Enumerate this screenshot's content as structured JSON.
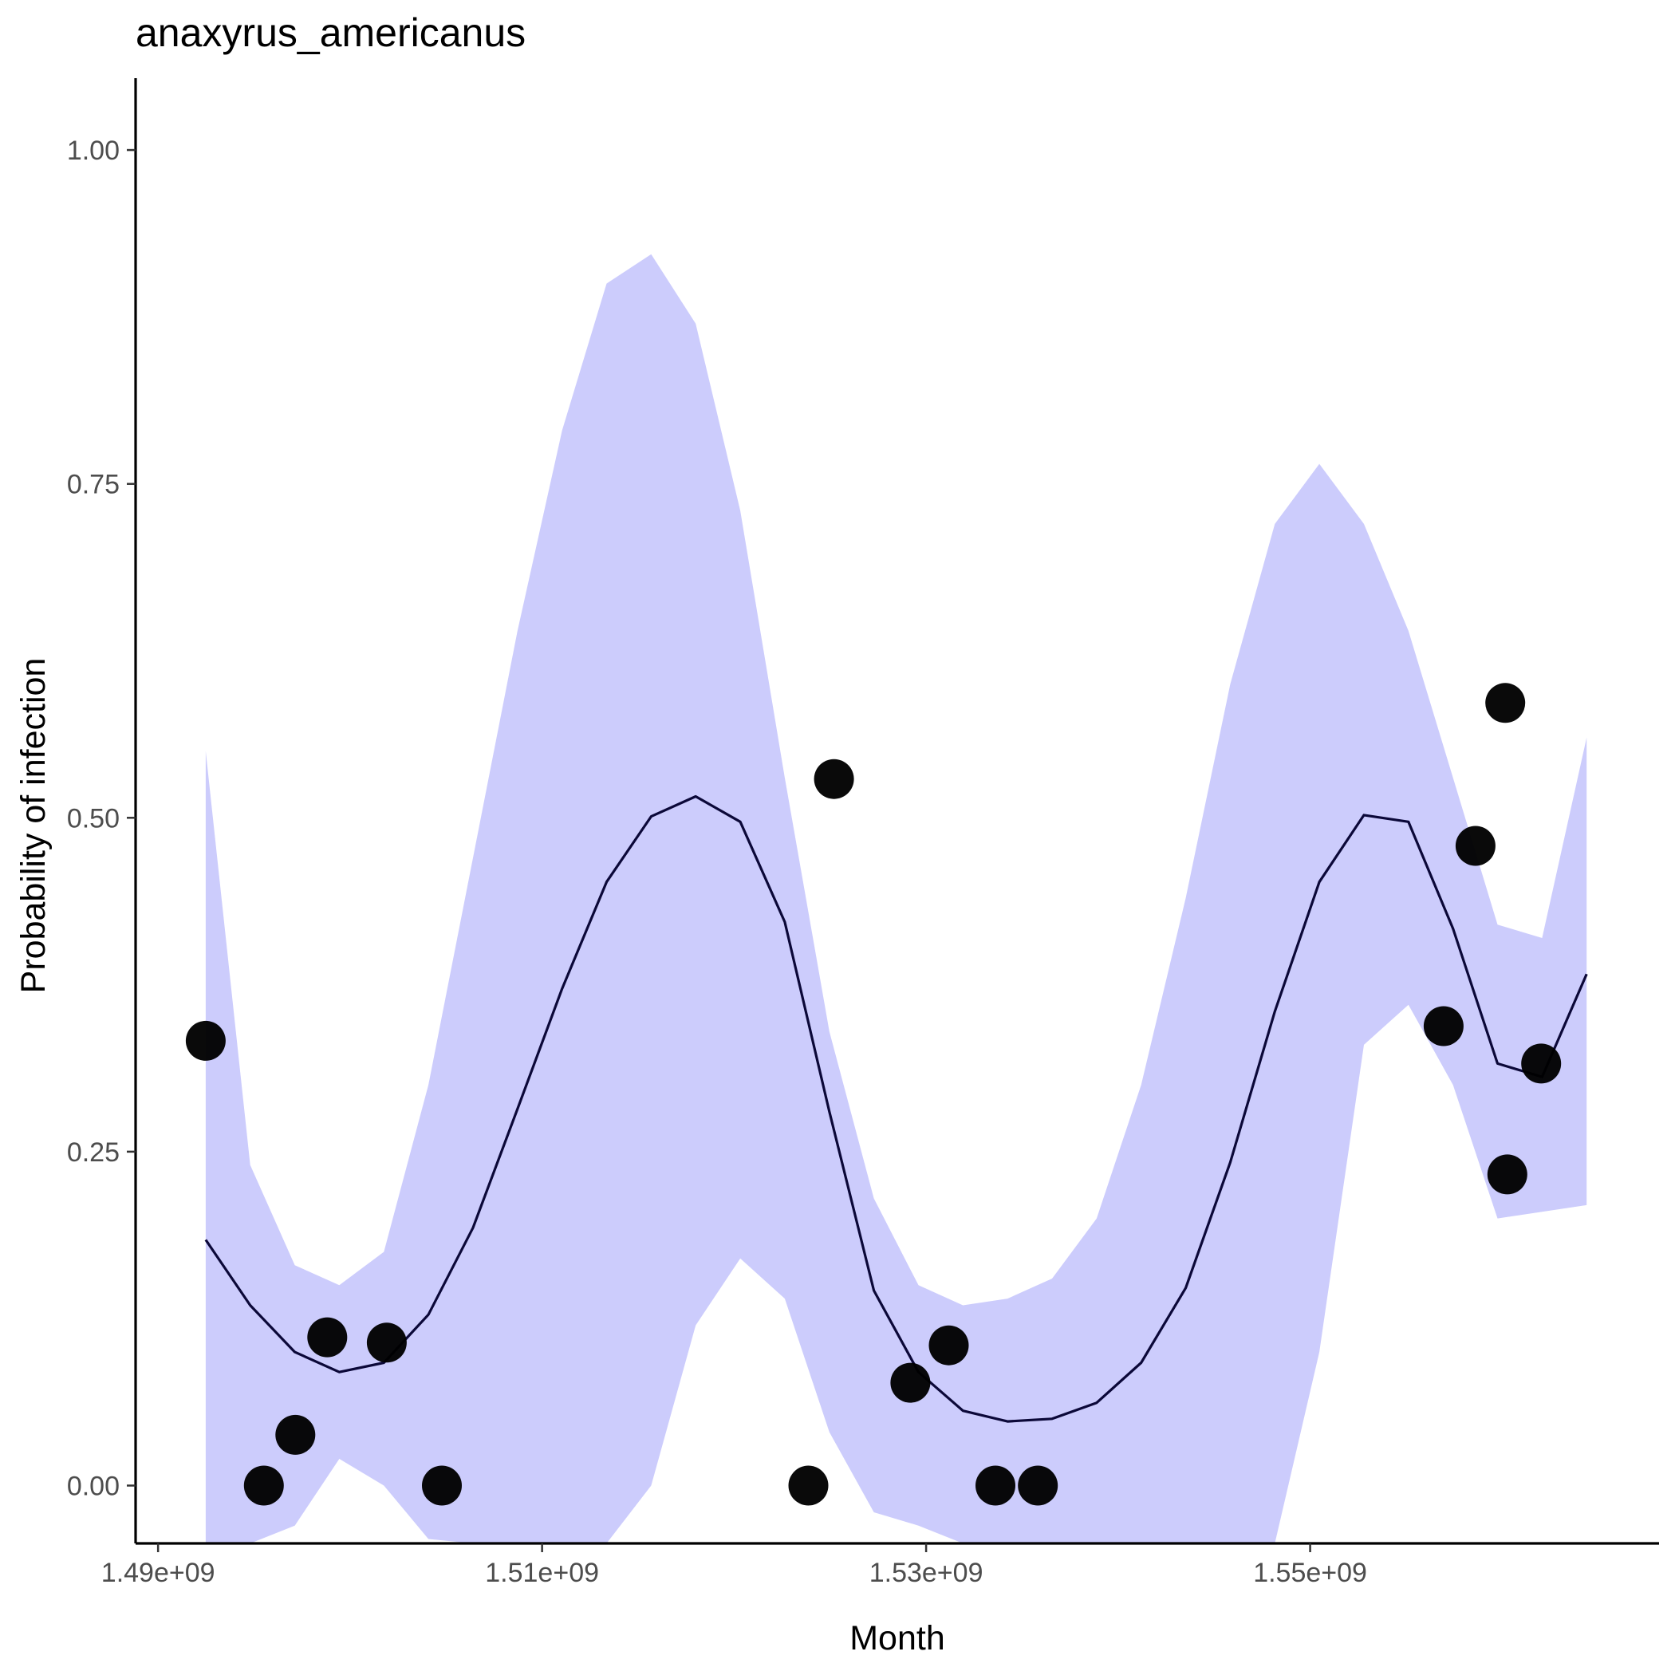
{
  "chart_data": {
    "type": "scatter",
    "title": "anaxyrus_americanus",
    "xlabel": "Month",
    "ylabel": "Probability of infection",
    "xlim": [
      1488830000,
      1568170000
    ],
    "ylim": [
      -0.0433,
      1.0538
    ],
    "x_ticks": [
      1490000000,
      1510000000,
      1530000000,
      1550000000
    ],
    "x_tick_labels": [
      "1.49e+09",
      "1.51e+09",
      "1.53e+09",
      "1.55e+09"
    ],
    "y_ticks": [
      0,
      0.25,
      0.5,
      0.75,
      1.0
    ],
    "y_tick_labels": [
      "0.00",
      "0.25",
      "0.50",
      "0.75",
      "1.00"
    ],
    "grid": false,
    "legend": "none",
    "points": {
      "color": "#000000",
      "x": [
        1492480000,
        1495510000,
        1497150000,
        1498810000,
        1501910000,
        1504780000,
        1523870000,
        1525200000,
        1529180000,
        1531180000,
        1533610000,
        1535820000,
        1556950000,
        1558610000,
        1560160000,
        1560270000,
        1562030000
      ],
      "y": [
        0.333,
        0.0,
        0.038,
        0.111,
        0.107,
        0.0,
        0.0,
        0.529,
        0.077,
        0.105,
        0.0,
        0.0,
        0.344,
        0.479,
        0.586,
        0.233,
        0.316
      ]
    },
    "fit": {
      "color": "#0b0838",
      "band_color": "#ccccfc",
      "x": [
        1492480000,
        1494800000,
        1497120000,
        1499440000,
        1501760000,
        1504080000,
        1506400000,
        1508720000,
        1511040000,
        1513360000,
        1515680000,
        1518000000,
        1520320000,
        1522640000,
        1524960000,
        1527280000,
        1529600000,
        1531920000,
        1534240000,
        1536560000,
        1538880000,
        1541200000,
        1543520000,
        1545840000,
        1548160000,
        1550480000,
        1552800000,
        1555120000,
        1557440000,
        1559760000,
        1562080000,
        1564400000
      ],
      "y": [
        0.184,
        0.135,
        0.1,
        0.085,
        0.092,
        0.128,
        0.193,
        0.282,
        0.372,
        0.452,
        0.501,
        0.516,
        0.497,
        0.422,
        0.28,
        0.146,
        0.085,
        0.056,
        0.048,
        0.05,
        0.062,
        0.092,
        0.148,
        0.242,
        0.355,
        0.452,
        0.502,
        0.497,
        0.417,
        0.316,
        0.306,
        0.383
      ],
      "lower": [
        -0.05,
        -0.06,
        -0.03,
        0.02,
        0.0,
        -0.04,
        -0.09,
        -0.15,
        -0.2,
        -0.14,
        0.0,
        0.12,
        0.17,
        0.14,
        0.04,
        -0.02,
        -0.03,
        -0.05,
        -0.07,
        -0.07,
        -0.06,
        -0.05,
        -0.08,
        -0.12,
        -0.14,
        0.1,
        0.33,
        0.36,
        0.3,
        0.2,
        0.205,
        0.21
      ],
      "upper": [
        0.55,
        0.24,
        0.165,
        0.15,
        0.175,
        0.3,
        0.47,
        0.64,
        0.79,
        0.9,
        0.922,
        0.87,
        0.73,
        0.53,
        0.34,
        0.215,
        0.15,
        0.135,
        0.14,
        0.155,
        0.2,
        0.3,
        0.44,
        0.6,
        0.72,
        0.765,
        0.72,
        0.64,
        0.53,
        0.42,
        0.41,
        0.56
      ]
    }
  }
}
